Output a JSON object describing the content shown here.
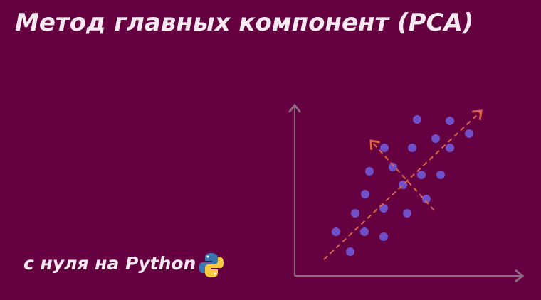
{
  "header": {
    "title": "Метод главных компонент (PCA)",
    "subtitle": "с нуля на Python"
  }
}
